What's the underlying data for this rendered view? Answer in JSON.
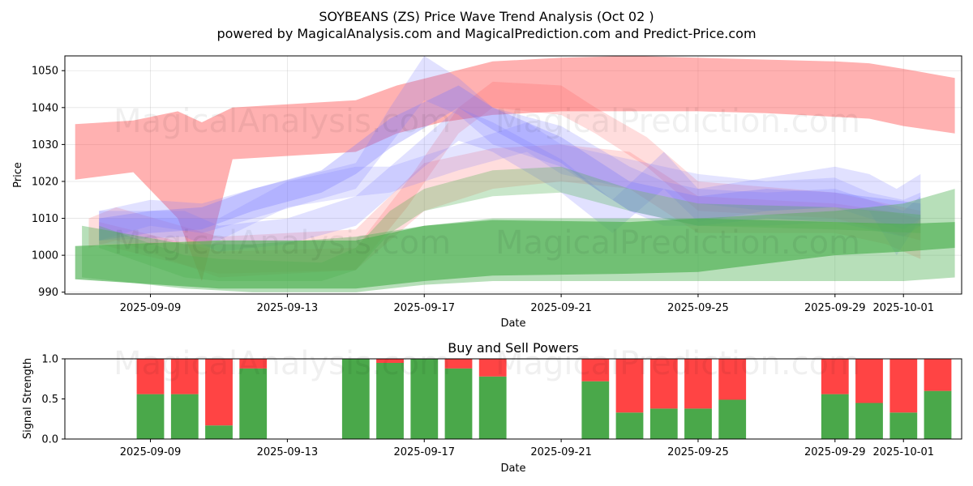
{
  "title_line1": "SOYBEANS (ZS) Price Wave Trend Analysis (Oct 02 )",
  "title_line2": "powered by MagicalAnalysis.com and MagicalPrediction.com and Predict-Price.com",
  "watermarks": [
    "MagicalAnalysis.com",
    "MagicalPrediction.com"
  ],
  "colors": {
    "red": "#ff4444",
    "green": "#4caf50",
    "blue": "#7777ff",
    "sell": "#ff4444",
    "buy": "#4aa84a"
  },
  "chart_data": [
    {
      "type": "area",
      "title": "",
      "xlabel": "Date",
      "ylabel": "Price",
      "xlim": [
        -2.5,
        23.7
      ],
      "ylim": [
        989.5,
        1054
      ],
      "x_tick_labels": [
        "2025-09-09",
        "2025-09-13",
        "2025-09-17",
        "2025-09-21",
        "2025-09-25",
        "2025-09-29",
        "2025-10-01"
      ],
      "x_tick_days": [
        0,
        4,
        8,
        12,
        16,
        20,
        22
      ],
      "y_ticks": [
        990,
        1000,
        1010,
        1020,
        1030,
        1040,
        1050
      ],
      "grid": true,
      "series": [
        {
          "name": "red-wave-main",
          "color": "red",
          "opacity": 0.42,
          "x": [
            -2.2,
            -0.5,
            0.8,
            1.5,
            2.4,
            6,
            7.2,
            8.5,
            10,
            12,
            14,
            16,
            18,
            20,
            21,
            22,
            23.5
          ],
          "upper": [
            1035.5,
            1036.5,
            1039,
            1036,
            1040,
            1042,
            1046,
            1049,
            1052.5,
            1053.5,
            1054,
            1053.5,
            1053,
            1052.5,
            1052,
            1050.5,
            1048
          ],
          "lower": [
            1020.5,
            1022.5,
            1010,
            993,
            1026,
            1028,
            1033,
            1036,
            1038,
            1039,
            1039,
            1039,
            1038.5,
            1037.5,
            1037,
            1035,
            1033
          ]
        },
        {
          "name": "red-wave-2",
          "color": "red",
          "opacity": 0.18,
          "x": [
            -1.8,
            -1,
            2,
            6,
            8,
            10,
            12,
            14,
            16,
            20,
            21.5,
            22.5
          ],
          "upper": [
            1010,
            1013,
            1005,
            1007,
            1025,
            1029,
            1030,
            1028,
            1016,
            1014,
            1012,
            1010
          ],
          "lower": [
            1002,
            1004,
            994,
            996,
            1012,
            1018,
            1020,
            1018,
            1006,
            1006,
            1003,
            999
          ]
        },
        {
          "name": "red-wave-3",
          "color": "red",
          "opacity": 0.18,
          "x": [
            -1.5,
            2,
            6,
            7.5,
            9,
            10,
            12,
            13,
            14.5,
            16,
            20,
            22.5
          ],
          "upper": [
            1009,
            1001,
            1002,
            1020,
            1040,
            1047,
            1046,
            1040,
            1032,
            1020,
            1017,
            1012
          ],
          "lower": [
            1003,
            995,
            996,
            1013,
            1033,
            1040,
            1038,
            1033,
            1024,
            1012,
            1010,
            1004
          ]
        },
        {
          "name": "blue-wave-1",
          "color": "blue",
          "opacity": 0.22,
          "x": [
            -1.5,
            0,
            1.5,
            3,
            6,
            7,
            8,
            9,
            10,
            12,
            14,
            15,
            16,
            18,
            20,
            22,
            22.5
          ],
          "upper": [
            1012,
            1015,
            1014,
            1018,
            1025,
            1040,
            1054,
            1048,
            1040,
            1035,
            1024,
            1020,
            1018,
            1017,
            1018,
            1012,
            1016
          ],
          "lower": [
            1004,
            1008,
            1006,
            1010,
            1018,
            1030,
            1042,
            1038,
            1030,
            1024,
            1012,
            1008,
            1008,
            1008,
            1009,
            1005,
            1008
          ]
        },
        {
          "name": "blue-wave-2",
          "color": "blue",
          "opacity": 0.22,
          "x": [
            -1.5,
            1,
            2,
            4,
            6,
            8,
            9,
            10,
            12,
            13.5,
            15,
            16,
            18,
            20,
            21,
            21.8,
            22.5
          ],
          "upper": [
            1012,
            1012,
            1008,
            1010,
            1016,
            1032,
            1040,
            1036,
            1026,
            1015,
            1028,
            1018,
            1021,
            1024,
            1022,
            1018,
            1022
          ],
          "lower": [
            1004,
            1005,
            1001,
            1003,
            1008,
            1024,
            1031,
            1028,
            1017,
            1006,
            1018,
            1009,
            1012,
            1013,
            1012,
            1000,
            1010
          ]
        },
        {
          "name": "blue-wave-3",
          "color": "blue",
          "opacity": 0.2,
          "x": [
            -1.5,
            2,
            4,
            6,
            7,
            9,
            11,
            12,
            14,
            16,
            18,
            20,
            21,
            22,
            22.5
          ],
          "upper": [
            1010,
            1010,
            1020,
            1024,
            1024,
            1030,
            1036,
            1030,
            1026,
            1022,
            1020,
            1021,
            1017,
            1015,
            1017
          ],
          "lower": [
            1003,
            1004,
            1013,
            1016,
            1017,
            1023,
            1028,
            1022,
            1018,
            1014,
            1012,
            1013,
            1010,
            1007,
            1010
          ]
        },
        {
          "name": "purple-wave",
          "color": "blue",
          "opacity": 0.3,
          "x": [
            -1.5,
            0,
            1.5,
            3,
            5,
            6,
            7,
            9,
            10,
            11,
            12,
            13,
            14,
            16,
            18,
            20,
            22.5
          ],
          "upper": [
            1010,
            1012,
            1013,
            1018,
            1023,
            1030,
            1037,
            1046,
            1040,
            1036,
            1032,
            1026,
            1020,
            1016,
            1018,
            1017,
            1014
          ],
          "lower": [
            1004,
            1006,
            1007,
            1012,
            1017,
            1022,
            1029,
            1040,
            1034,
            1029,
            1025,
            1018,
            1012,
            1008,
            1010,
            1009,
            1008
          ]
        },
        {
          "name": "green-wave-main",
          "color": "green",
          "opacity": 0.65,
          "x": [
            -2.2,
            2,
            6,
            8,
            10,
            14,
            16,
            20,
            22,
            23.5
          ],
          "upper": [
            1002.5,
            1004,
            1004,
            1008,
            1009.5,
            1009,
            1010,
            1009,
            1008.5,
            1009
          ],
          "lower": [
            993.5,
            991,
            991,
            993,
            994.5,
            995,
            995.5,
            1000,
            1001,
            1002
          ]
        },
        {
          "name": "green-wave-2",
          "color": "green",
          "opacity": 0.4,
          "x": [
            -2,
            1,
            3,
            6,
            8,
            10,
            14,
            16,
            20,
            22,
            23.5
          ],
          "upper": [
            1008,
            1003,
            1003,
            1005,
            1008,
            1010,
            1010,
            1010,
            1012,
            1014,
            1018
          ],
          "lower": [
            994,
            991,
            990,
            990,
            992,
            993,
            993,
            993,
            993,
            993,
            994
          ]
        },
        {
          "name": "brown-wave",
          "color": "green",
          "opacity": 0.3,
          "x": [
            -1.5,
            1,
            2,
            5,
            6,
            7,
            8,
            10,
            12,
            14,
            16,
            20,
            22.5
          ],
          "upper": [
            1008,
            1000,
            999,
            998,
            1002,
            1012,
            1018,
            1023,
            1024,
            1018,
            1014,
            1013,
            1011
          ],
          "lower": [
            1002,
            994,
            993,
            993,
            996,
            1006,
            1012,
            1016,
            1017,
            1012,
            1008,
            1007,
            1006
          ]
        }
      ]
    },
    {
      "type": "bar",
      "title": "Buy and Sell Powers",
      "xlabel": "Date",
      "ylabel": "Signal Strength",
      "ylim": [
        0,
        1
      ],
      "y_tick_labels": [
        "0.0",
        "0.5",
        "1.0"
      ],
      "x_tick_labels": [
        "2025-09-09",
        "2025-09-13",
        "2025-09-17",
        "2025-09-21",
        "2025-09-25",
        "2025-09-29",
        "2025-10-01"
      ],
      "x_tick_days": [
        0,
        4,
        8,
        12,
        16,
        20,
        22
      ],
      "xlim": [
        -2.5,
        23.7
      ],
      "days": [
        0,
        1,
        2,
        3,
        6,
        7,
        8,
        9,
        10,
        13,
        14,
        15,
        16,
        17,
        20,
        21,
        22,
        23
      ],
      "buy": [
        0.56,
        0.56,
        0.17,
        0.88,
        1.0,
        0.95,
        1.0,
        0.88,
        0.78,
        0.72,
        0.33,
        0.38,
        0.38,
        0.49,
        0.56,
        0.45,
        0.33,
        0.6
      ],
      "sell": [
        0.44,
        0.44,
        0.83,
        0.12,
        0.0,
        0.05,
        0.0,
        0.12,
        0.22,
        0.28,
        0.67,
        0.62,
        0.62,
        0.51,
        0.44,
        0.55,
        0.67,
        0.4
      ]
    }
  ]
}
